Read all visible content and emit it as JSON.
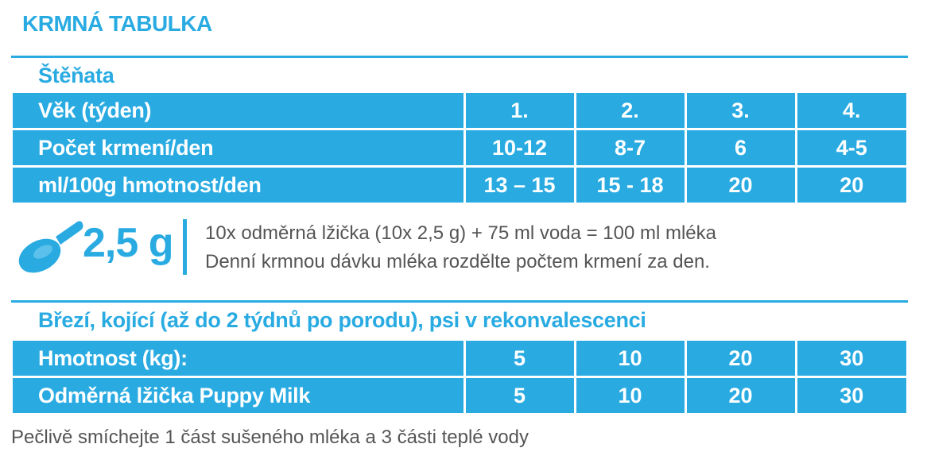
{
  "title": "KRMNÁ TABULKA",
  "puppies": {
    "heading": "Štěňata",
    "rows": [
      {
        "label": "Věk (týden)",
        "values": [
          "1.",
          "2.",
          "3.",
          "4."
        ]
      },
      {
        "label": "Počet krmení/den",
        "values": [
          "10-12",
          "8-7",
          "6",
          "4-5"
        ]
      },
      {
        "label": "ml/100g hmotnost/den",
        "values": [
          "13 – 15",
          "15 - 18",
          "20",
          "20"
        ]
      }
    ]
  },
  "dosage": {
    "amount": "2,5 g",
    "icon": "measuring-spoon-icon",
    "line1": "10x odměrná lžička (10x 2,5 g) + 75 ml voda = 100 ml mléka",
    "line2": "Denní krmnou dávku mléka rozdělte počtem krmení za den."
  },
  "adults": {
    "heading": "Březí, kojící (až do 2 týdnů po porodu), psi v rekonvalescenci",
    "rows": [
      {
        "label": "Hmotnost (kg):",
        "values": [
          "5",
          "10",
          "20",
          "30"
        ]
      },
      {
        "label": "Odměrná lžička Puppy Milk",
        "values": [
          "5",
          "10",
          "20",
          "30"
        ]
      }
    ]
  },
  "footnote": "Pečlivě smíchejte 1 část sušeného mléka a 3 části teplé vody",
  "colors": {
    "accent": "#29abe2",
    "text": "#555555"
  }
}
